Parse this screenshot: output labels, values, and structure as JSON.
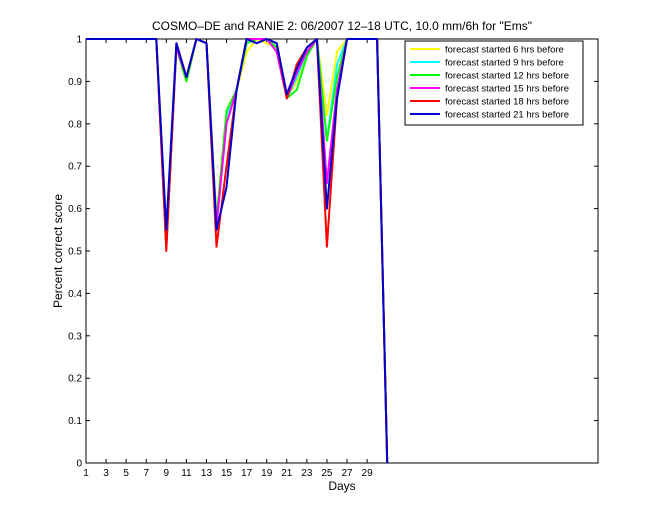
{
  "chart_data": {
    "type": "line",
    "title": "COSMO–DE and RANIE 2: 06/2007 12–18 UTC, 10.0 mm/6h for \"Ems\"",
    "xlabel": "Days",
    "ylabel": "Percent correct score",
    "xlim": [
      1,
      52
    ],
    "ylim": [
      0,
      1
    ],
    "xticks": [
      1,
      3,
      5,
      7,
      9,
      11,
      13,
      15,
      17,
      19,
      21,
      23,
      25,
      27,
      29
    ],
    "yticks": [
      0,
      0.1,
      0.2,
      0.3,
      0.4,
      0.5,
      0.6,
      0.7,
      0.8,
      0.9,
      1
    ],
    "grid": false,
    "legend_position": "top-right",
    "x": [
      1,
      2,
      3,
      4,
      5,
      6,
      7,
      8,
      9,
      10,
      11,
      12,
      13,
      14,
      15,
      16,
      17,
      18,
      19,
      20,
      21,
      22,
      23,
      24,
      25,
      26,
      27,
      28,
      29,
      30,
      31
    ],
    "series": [
      {
        "name": "forecast started 6 hrs before",
        "color": "#ffff00",
        "values": [
          1,
          1,
          1,
          1,
          1,
          1,
          1,
          1,
          0.52,
          0.98,
          0.9,
          1,
          0.99,
          0.58,
          0.83,
          0.88,
          0.97,
          1,
          0.99,
          0.98,
          0.86,
          0.9,
          0.97,
          1,
          0.82,
          0.97,
          1,
          1,
          1,
          1,
          0
        ]
      },
      {
        "name": "forecast started 9 hrs before",
        "color": "#00ffff",
        "values": [
          1,
          1,
          1,
          1,
          1,
          1,
          1,
          1,
          0.51,
          0.98,
          0.91,
          1,
          0.99,
          0.57,
          0.82,
          0.88,
          0.99,
          1,
          1,
          0.98,
          0.86,
          0.91,
          0.97,
          1,
          0.76,
          0.94,
          1,
          1,
          1,
          1,
          0
        ]
      },
      {
        "name": "forecast started 12 hrs before",
        "color": "#00ff00",
        "values": [
          1,
          1,
          1,
          1,
          1,
          1,
          1,
          1,
          0.51,
          0.98,
          0.9,
          1,
          0.99,
          0.57,
          0.83,
          0.88,
          0.99,
          1,
          1,
          0.98,
          0.86,
          0.88,
          0.96,
          1,
          0.76,
          0.91,
          1,
          1,
          1,
          1,
          0
        ]
      },
      {
        "name": "forecast started 15 hrs before",
        "color": "#ff00ff",
        "values": [
          1,
          1,
          1,
          1,
          1,
          1,
          1,
          1,
          0.51,
          0.98,
          0.91,
          1,
          0.99,
          0.56,
          0.8,
          0.88,
          1,
          1,
          1,
          0.97,
          0.86,
          0.92,
          0.97,
          1,
          0.66,
          0.88,
          1,
          1,
          1,
          1,
          0
        ]
      },
      {
        "name": "forecast started 18 hrs before",
        "color": "#ff0000",
        "values": [
          1,
          1,
          1,
          1,
          1,
          1,
          1,
          1,
          0.5,
          0.99,
          0.91,
          1,
          0.99,
          0.51,
          0.7,
          0.88,
          1,
          0.99,
          1,
          0.99,
          0.86,
          0.94,
          0.98,
          1,
          0.51,
          0.86,
          1,
          1,
          1,
          1,
          0
        ]
      },
      {
        "name": "forecast started 21 hrs before",
        "color": "#0000cc",
        "values": [
          1,
          1,
          1,
          1,
          1,
          1,
          1,
          1,
          0.55,
          0.99,
          0.91,
          1,
          0.99,
          0.55,
          0.65,
          0.88,
          1,
          0.99,
          1,
          0.99,
          0.87,
          0.93,
          0.98,
          1,
          0.6,
          0.86,
          1,
          1,
          1,
          1,
          0
        ]
      }
    ]
  }
}
